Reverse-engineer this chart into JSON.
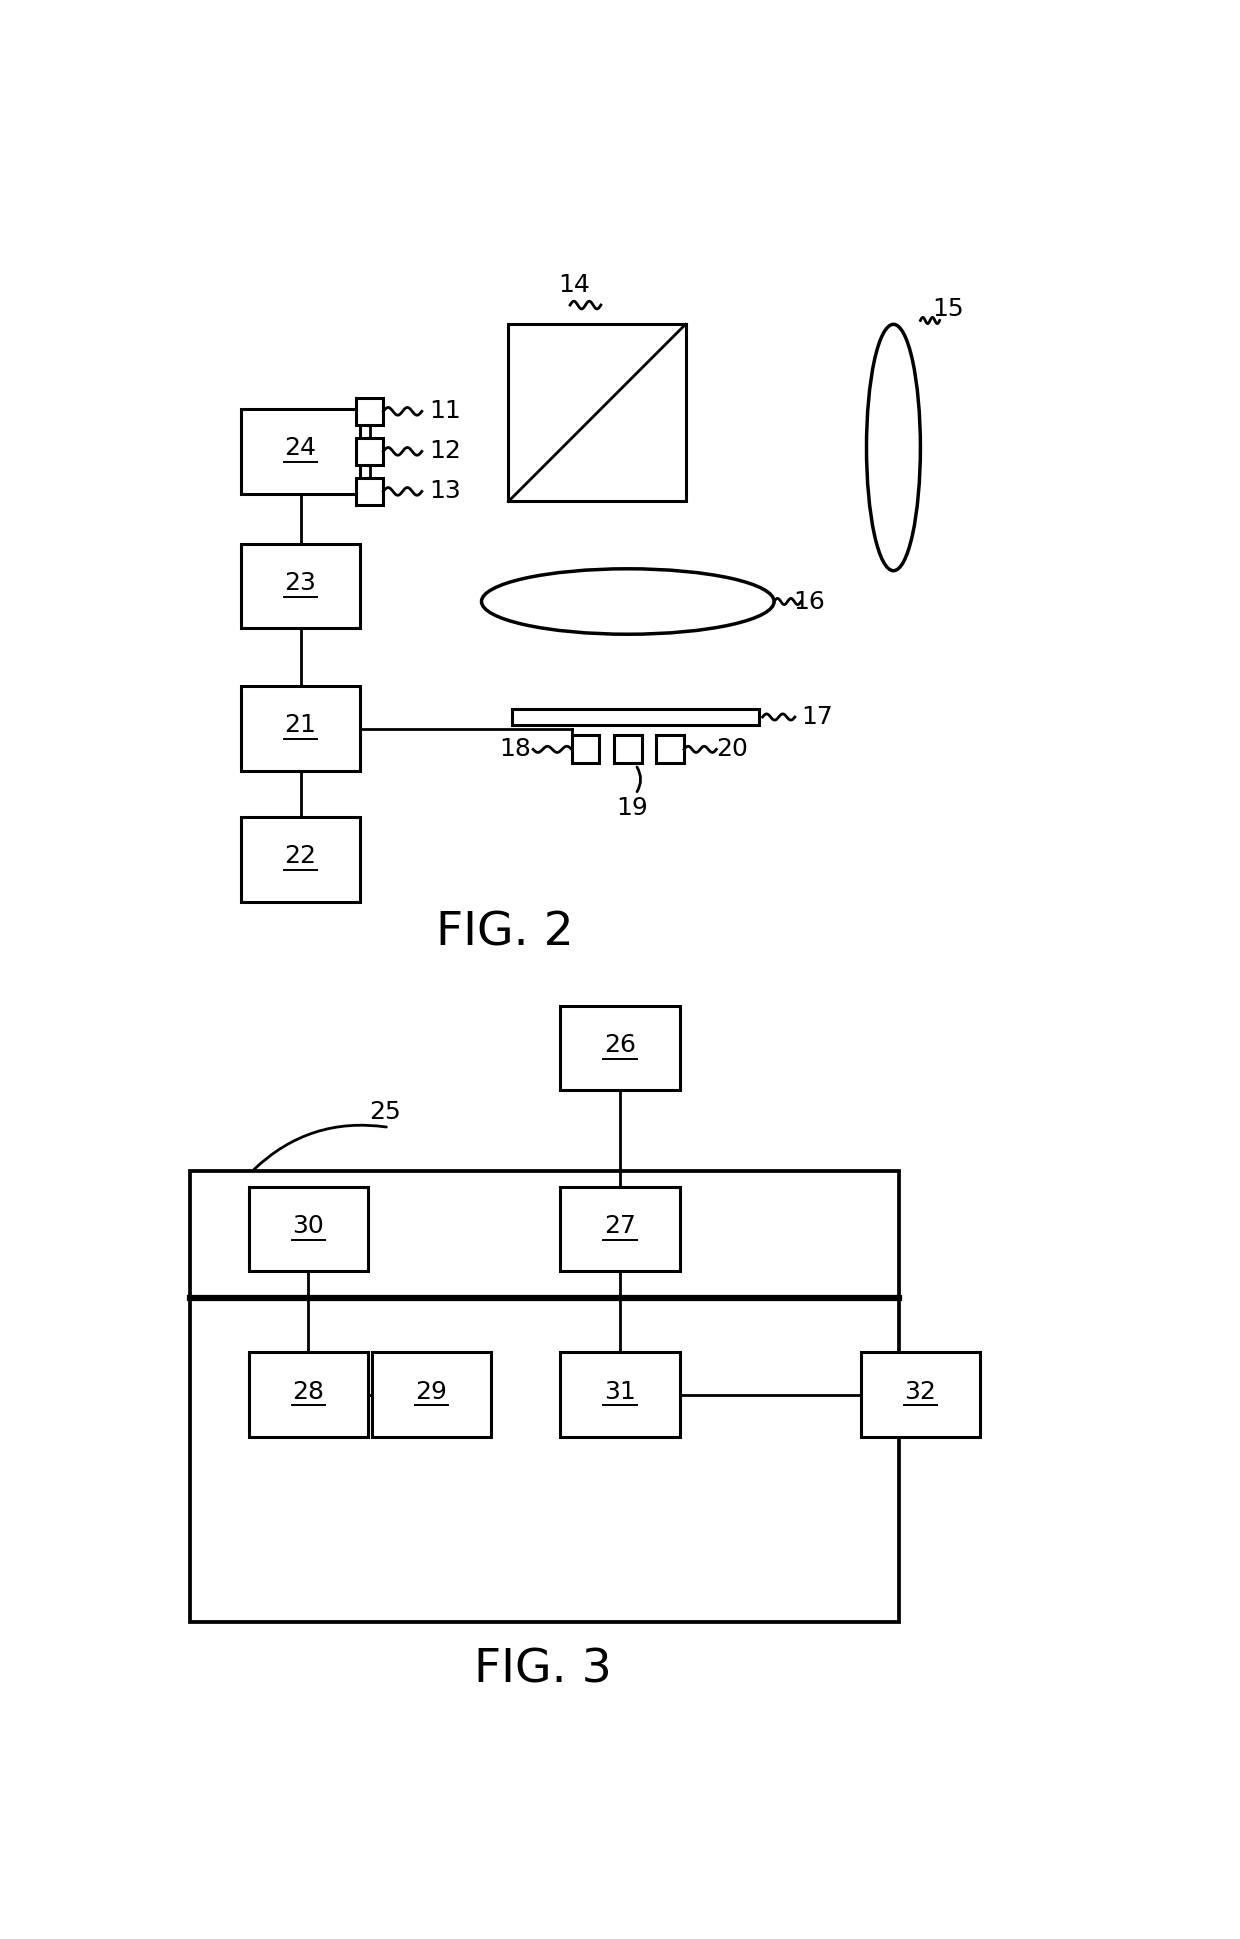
{
  "bg_color": "#ffffff",
  "fig_width": 12.4,
  "fig_height": 19.39,
  "fig2_title": "FIG. 2",
  "fig3_title": "FIG. 3",
  "label_fontsize": 18,
  "title_fontsize": 34
}
